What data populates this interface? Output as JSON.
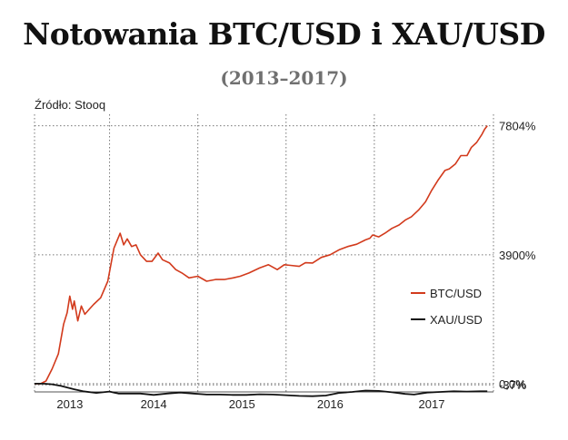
{
  "header": {
    "title": "Notowania BTC/USD i XAU/USD",
    "subtitle": "(2013–2017)",
    "source": "Źródło: Stooq"
  },
  "chart_data": {
    "type": "line",
    "xlabel": "",
    "ylabel": "",
    "y_unit": "% change",
    "x_tick_labels": [
      "2013",
      "2014",
      "2015",
      "2016",
      "2017"
    ],
    "y_tick_labels": [
      "7804%",
      "3900%",
      "0,0%",
      "-37%"
    ],
    "y_ticks": [
      7804,
      3900,
      0,
      -37
    ],
    "ylim": [
      -250,
      8150
    ],
    "xlim": [
      2012.65,
      2017.85
    ],
    "grid": true,
    "legend_position": "right",
    "colors": {
      "BTC/USD": "#d23a1c",
      "XAU/USD": "#111111"
    },
    "series": [
      {
        "name": "BTC/USD",
        "x": [
          2012.65,
          2012.72,
          2012.78,
          2012.85,
          2012.92,
          2012.95,
          2012.98,
          2013.02,
          2013.05,
          2013.08,
          2013.1,
          2013.14,
          2013.18,
          2013.22,
          2013.27,
          2013.32,
          2013.4,
          2013.48,
          2013.55,
          2013.62,
          2013.66,
          2013.7,
          2013.75,
          2013.8,
          2013.85,
          2013.92,
          2013.98,
          2014.05,
          2014.1,
          2014.18,
          2014.25,
          2014.32,
          2014.4,
          2014.5,
          2014.6,
          2014.7,
          2014.8,
          2014.9,
          2014.98,
          2015.08,
          2015.2,
          2015.3,
          2015.4,
          2015.48,
          2015.55,
          2015.65,
          2015.72,
          2015.8,
          2015.9,
          2016.0,
          2016.1,
          2016.2,
          2016.3,
          2016.4,
          2016.45,
          2016.48,
          2016.55,
          2016.62,
          2016.7,
          2016.78,
          2016.85,
          2016.92,
          2017.0,
          2017.08,
          2017.15,
          2017.22,
          2017.3,
          2017.35,
          2017.42,
          2017.48,
          2017.55,
          2017.6,
          2017.66,
          2017.72,
          2017.75,
          2017.78
        ],
        "values": [
          0,
          0,
          80,
          450,
          900,
          1350,
          1800,
          2150,
          2650,
          2250,
          2500,
          1900,
          2350,
          2100,
          2250,
          2400,
          2600,
          3100,
          4100,
          4550,
          4200,
          4380,
          4150,
          4200,
          3900,
          3700,
          3700,
          3950,
          3750,
          3650,
          3450,
          3350,
          3200,
          3250,
          3100,
          3150,
          3150,
          3200,
          3250,
          3350,
          3500,
          3600,
          3450,
          3600,
          3580,
          3550,
          3660,
          3650,
          3820,
          3900,
          4050,
          4150,
          4220,
          4350,
          4400,
          4500,
          4440,
          4550,
          4700,
          4800,
          4950,
          5050,
          5250,
          5500,
          5850,
          6150,
          6450,
          6500,
          6650,
          6900,
          6900,
          7150,
          7300,
          7550,
          7700,
          7804
        ]
      },
      {
        "name": "XAU/USD",
        "x": [
          2012.65,
          2012.75,
          2012.85,
          2012.95,
          2013.1,
          2013.2,
          2013.35,
          2013.5,
          2013.6,
          2013.7,
          2013.85,
          2014.0,
          2014.15,
          2014.3,
          2014.45,
          2014.6,
          2014.75,
          2014.9,
          2015.05,
          2015.2,
          2015.35,
          2015.5,
          2015.65,
          2015.8,
          2015.95,
          2016.1,
          2016.25,
          2016.4,
          2016.55,
          2016.7,
          2016.85,
          2016.95,
          2017.1,
          2017.25,
          2017.4,
          2017.55,
          2017.7,
          2017.78
        ],
        "values": [
          0,
          0,
          -20,
          -70,
          -170,
          -230,
          -280,
          -240,
          -300,
          -300,
          -300,
          -340,
          -300,
          -270,
          -300,
          -330,
          -330,
          -340,
          -340,
          -320,
          -330,
          -350,
          -370,
          -380,
          -360,
          -280,
          -250,
          -210,
          -220,
          -260,
          -310,
          -330,
          -270,
          -250,
          -230,
          -240,
          -230,
          -230
        ]
      }
    ]
  }
}
